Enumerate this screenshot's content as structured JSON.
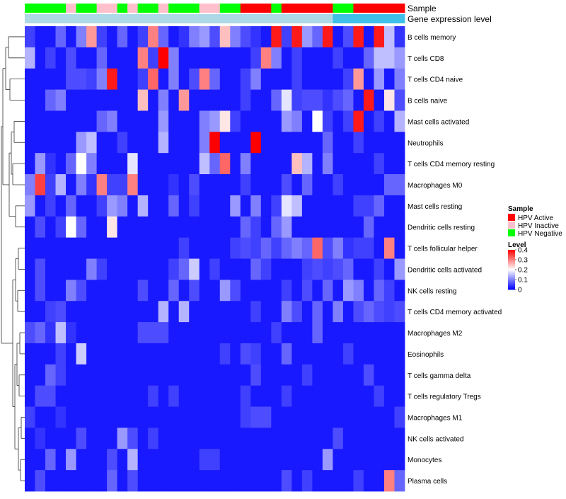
{
  "chart_data": {
    "type": "heatmap",
    "annotation_tracks": [
      {
        "name": "Sample",
        "values": [
          "Negative",
          "Negative",
          "Negative",
          "Negative",
          "Inactive",
          "Negative",
          "Negative",
          "Inactive",
          "Inactive",
          "Negative",
          "Inactive",
          "Negative",
          "Negative",
          "Inactive",
          "Negative",
          "Negative",
          "Negative",
          "Inactive",
          "Inactive",
          "Negative",
          "Negative",
          "Active",
          "Active",
          "Active",
          "Negative",
          "Active",
          "Active",
          "Active",
          "Active",
          "Active",
          "Negative",
          "Negative",
          "Active",
          "Active",
          "Active",
          "Active",
          "Active"
        ]
      },
      {
        "name": "Gene expression level",
        "values": [
          "low",
          "low",
          "low",
          "low",
          "low",
          "low",
          "low",
          "low",
          "low",
          "low",
          "low",
          "low",
          "low",
          "low",
          "low",
          "low",
          "low",
          "low",
          "low",
          "low",
          "low",
          "low",
          "low",
          "low",
          "low",
          "low",
          "low",
          "low",
          "low",
          "low",
          "high",
          "high",
          "high",
          "high",
          "high",
          "high",
          "high"
        ]
      }
    ],
    "rows": [
      "B cells memory",
      "T cells CD8",
      "T cells CD4 naive",
      "B cells naive",
      "Mast cells activated",
      "Neutrophils",
      "T cells CD4 memory resting",
      "Macrophages M0",
      "Mast cells resting",
      "Dendritic cells resting",
      "T cells follicular helper",
      "Dendritic cells activated",
      "NK cells resting",
      "T cells CD4 memory activated",
      "Macrophages M2",
      "Eosinophils",
      "T cells gamma delta",
      "T cells regulatory  Tregs",
      "Macrophages M1",
      "NK cells activated",
      "Monocytes",
      "Plasma cells"
    ],
    "values": [
      [
        0.05,
        0.02,
        0.02,
        0.08,
        0.02,
        0.1,
        0.28,
        0.05,
        0.02,
        0.08,
        0.02,
        0.05,
        0.3,
        0.08,
        0.02,
        0.04,
        0.1,
        0.12,
        0.06,
        0.25,
        0.1,
        0.06,
        0.04,
        0.02,
        0.38,
        0.05,
        0.38,
        0.12,
        0.08,
        0.38,
        0.02,
        0.06,
        0.38,
        0.02,
        0.38,
        0.15,
        0.04
      ],
      [
        0.14,
        0.02,
        0.05,
        0.02,
        0.06,
        0.02,
        0.02,
        0.08,
        0.02,
        0.02,
        0.02,
        0.3,
        0.05,
        0.4,
        0.1,
        0.02,
        0.02,
        0.02,
        0.02,
        0.02,
        0.02,
        0.02,
        0.05,
        0.3,
        0.1,
        0.02,
        0.05,
        0.02,
        0.02,
        0.02,
        0.05,
        0.02,
        0.02,
        0.08,
        0.15,
        0.15,
        0.12
      ],
      [
        0.02,
        0.02,
        0.02,
        0.02,
        0.06,
        0.06,
        0.05,
        0.1,
        0.38,
        0.02,
        0.02,
        0.05,
        0.32,
        0.02,
        0.1,
        0.02,
        0.06,
        0.3,
        0.08,
        0.02,
        0.02,
        0.05,
        0.1,
        0.02,
        0.02,
        0.02,
        0.05,
        0.02,
        0.02,
        0.02,
        0.02,
        0.05,
        0.28,
        0.02,
        0.12,
        0.02,
        0.1
      ],
      [
        0.02,
        0.02,
        0.08,
        0.1,
        0.02,
        0.02,
        0.02,
        0.02,
        0.02,
        0.02,
        0.02,
        0.25,
        0.02,
        0.1,
        0.02,
        0.28,
        0.02,
        0.02,
        0.02,
        0.02,
        0.02,
        0.05,
        0.02,
        0.02,
        0.08,
        0.18,
        0.05,
        0.06,
        0.06,
        0.04,
        0.06,
        0.08,
        0.02,
        0.38,
        0.02,
        0.22,
        0.06
      ],
      [
        0.02,
        0.02,
        0.02,
        0.02,
        0.02,
        0.02,
        0.02,
        0.08,
        0.1,
        0.02,
        0.02,
        0.02,
        0.02,
        0.12,
        0.02,
        0.02,
        0.02,
        0.1,
        0.12,
        0.22,
        0.05,
        0.02,
        0.02,
        0.02,
        0.02,
        0.12,
        0.1,
        0.02,
        0.2,
        0.05,
        0.02,
        0.05,
        0.38,
        0.02,
        0.05,
        0.02,
        0.14
      ],
      [
        0.02,
        0.02,
        0.02,
        0.02,
        0.02,
        0.12,
        0.15,
        0.02,
        0.02,
        0.05,
        0.02,
        0.02,
        0.02,
        0.14,
        0.02,
        0.02,
        0.02,
        0.1,
        0.4,
        0.02,
        0.02,
        0.02,
        0.4,
        0.02,
        0.02,
        0.02,
        0.02,
        0.02,
        0.02,
        0.08,
        0.02,
        0.02,
        0.05,
        0.02,
        0.02,
        0.02,
        0.02
      ],
      [
        0.02,
        0.12,
        0.04,
        0.02,
        0.08,
        0.2,
        0.1,
        0.02,
        0.02,
        0.02,
        0.18,
        0.02,
        0.02,
        0.02,
        0.02,
        0.02,
        0.02,
        0.15,
        0.08,
        0.32,
        0.02,
        0.1,
        0.02,
        0.02,
        0.02,
        0.02,
        0.25,
        0.14,
        0.02,
        0.1,
        0.02,
        0.02,
        0.02,
        0.02,
        0.05,
        0.02,
        0.02
      ],
      [
        0.1,
        0.35,
        0.05,
        0.14,
        0.02,
        0.1,
        0.04,
        0.3,
        0.05,
        0.05,
        0.3,
        0.02,
        0.02,
        0.02,
        0.04,
        0.02,
        0.06,
        0.02,
        0.02,
        0.02,
        0.02,
        0.05,
        0.02,
        0.02,
        0.02,
        0.06,
        0.02,
        0.08,
        0.02,
        0.02,
        0.05,
        0.02,
        0.02,
        0.02,
        0.02,
        0.08,
        0.08
      ],
      [
        0.12,
        0.02,
        0.05,
        0.02,
        0.08,
        0.02,
        0.02,
        0.05,
        0.12,
        0.1,
        0.02,
        0.14,
        0.02,
        0.02,
        0.08,
        0.02,
        0.05,
        0.02,
        0.02,
        0.02,
        0.12,
        0.02,
        0.1,
        0.02,
        0.05,
        0.18,
        0.15,
        0.02,
        0.02,
        0.02,
        0.02,
        0.02,
        0.05,
        0.05,
        0.08,
        0.02,
        0.02
      ],
      [
        0.02,
        0.06,
        0.02,
        0.05,
        0.2,
        0.08,
        0.02,
        0.02,
        0.22,
        0.02,
        0.02,
        0.02,
        0.02,
        0.02,
        0.02,
        0.02,
        0.02,
        0.02,
        0.02,
        0.02,
        0.02,
        0.08,
        0.05,
        0.02,
        0.08,
        0.12,
        0.02,
        0.02,
        0.02,
        0.02,
        0.02,
        0.02,
        0.02,
        0.08,
        0.02,
        0.02,
        0.02
      ],
      [
        0.02,
        0.02,
        0.02,
        0.02,
        0.02,
        0.02,
        0.02,
        0.02,
        0.02,
        0.02,
        0.02,
        0.02,
        0.02,
        0.02,
        0.02,
        0.05,
        0.02,
        0.02,
        0.02,
        0.02,
        0.05,
        0.06,
        0.05,
        0.08,
        0.05,
        0.08,
        0.1,
        0.08,
        0.32,
        0.06,
        0.1,
        0.04,
        0.05,
        0.05,
        0.02,
        0.3,
        0.02
      ],
      [
        0.02,
        0.06,
        0.02,
        0.02,
        0.02,
        0.02,
        0.1,
        0.05,
        0.02,
        0.02,
        0.02,
        0.02,
        0.02,
        0.02,
        0.05,
        0.08,
        0.16,
        0.02,
        0.05,
        0.02,
        0.02,
        0.02,
        0.08,
        0.05,
        0.02,
        0.02,
        0.02,
        0.05,
        0.06,
        0.05,
        0.06,
        0.08,
        0.02,
        0.02,
        0.05,
        0.02,
        0.12
      ],
      [
        0.02,
        0.06,
        0.02,
        0.02,
        0.1,
        0.06,
        0.02,
        0.02,
        0.02,
        0.02,
        0.02,
        0.06,
        0.02,
        0.02,
        0.08,
        0.02,
        0.06,
        0.02,
        0.02,
        0.12,
        0.06,
        0.02,
        0.02,
        0.02,
        0.02,
        0.05,
        0.02,
        0.06,
        0.02,
        0.08,
        0.02,
        0.12,
        0.1,
        0.02,
        0.08,
        0.05,
        0.02
      ],
      [
        0.02,
        0.02,
        0.05,
        0.06,
        0.02,
        0.02,
        0.02,
        0.02,
        0.02,
        0.02,
        0.02,
        0.02,
        0.02,
        0.14,
        0.02,
        0.14,
        0.02,
        0.02,
        0.02,
        0.02,
        0.02,
        0.02,
        0.05,
        0.02,
        0.02,
        0.1,
        0.06,
        0.02,
        0.08,
        0.02,
        0.1,
        0.02,
        0.06,
        0.08,
        0.06,
        0.05,
        0.06
      ],
      [
        0.06,
        0.08,
        0.04,
        0.15,
        0.04,
        0.02,
        0.02,
        0.02,
        0.02,
        0.02,
        0.02,
        0.06,
        0.06,
        0.06,
        0.02,
        0.02,
        0.02,
        0.02,
        0.02,
        0.02,
        0.02,
        0.02,
        0.02,
        0.02,
        0.05,
        0.02,
        0.02,
        0.02,
        0.08,
        0.02,
        0.02,
        0.02,
        0.02,
        0.02,
        0.02,
        0.02,
        0.02
      ],
      [
        0.02,
        0.02,
        0.02,
        0.05,
        0.02,
        0.16,
        0.02,
        0.02,
        0.02,
        0.02,
        0.02,
        0.02,
        0.02,
        0.02,
        0.02,
        0.02,
        0.02,
        0.02,
        0.02,
        0.05,
        0.02,
        0.06,
        0.05,
        0.02,
        0.02,
        0.08,
        0.02,
        0.02,
        0.02,
        0.02,
        0.02,
        0.05,
        0.02,
        0.02,
        0.02,
        0.02,
        0.02
      ],
      [
        0.02,
        0.02,
        0.08,
        0.05,
        0.02,
        0.02,
        0.02,
        0.02,
        0.02,
        0.02,
        0.02,
        0.02,
        0.02,
        0.02,
        0.02,
        0.02,
        0.02,
        0.02,
        0.02,
        0.02,
        0.02,
        0.02,
        0.06,
        0.02,
        0.02,
        0.02,
        0.02,
        0.05,
        0.02,
        0.02,
        0.02,
        0.02,
        0.02,
        0.06,
        0.02,
        0.02,
        0.02
      ],
      [
        0.02,
        0.06,
        0.06,
        0.02,
        0.02,
        0.02,
        0.02,
        0.02,
        0.02,
        0.02,
        0.02,
        0.02,
        0.05,
        0.02,
        0.05,
        0.02,
        0.02,
        0.02,
        0.02,
        0.02,
        0.02,
        0.05,
        0.02,
        0.02,
        0.02,
        0.05,
        0.02,
        0.02,
        0.02,
        0.02,
        0.02,
        0.02,
        0.02,
        0.02,
        0.05,
        0.02,
        0.02
      ],
      [
        0.05,
        0.02,
        0.02,
        0.04,
        0.02,
        0.02,
        0.02,
        0.02,
        0.02,
        0.02,
        0.02,
        0.02,
        0.02,
        0.02,
        0.02,
        0.02,
        0.02,
        0.02,
        0.02,
        0.02,
        0.02,
        0.05,
        0.06,
        0.06,
        0.02,
        0.02,
        0.02,
        0.02,
        0.02,
        0.02,
        0.02,
        0.02,
        0.02,
        0.02,
        0.02,
        0.02,
        0.05
      ],
      [
        0.02,
        0.04,
        0.02,
        0.02,
        0.02,
        0.06,
        0.02,
        0.02,
        0.02,
        0.12,
        0.06,
        0.02,
        0.05,
        0.02,
        0.02,
        0.02,
        0.02,
        0.02,
        0.02,
        0.02,
        0.02,
        0.02,
        0.02,
        0.02,
        0.02,
        0.02,
        0.02,
        0.02,
        0.02,
        0.02,
        0.06,
        0.02,
        0.02,
        0.02,
        0.02,
        0.02,
        0.02
      ],
      [
        0.02,
        0.02,
        0.08,
        0.02,
        0.12,
        0.02,
        0.02,
        0.02,
        0.06,
        0.02,
        0.14,
        0.02,
        0.02,
        0.02,
        0.02,
        0.02,
        0.02,
        0.05,
        0.05,
        0.02,
        0.02,
        0.02,
        0.02,
        0.02,
        0.02,
        0.02,
        0.02,
        0.02,
        0.02,
        0.12,
        0.02,
        0.02,
        0.02,
        0.02,
        0.02,
        0.02,
        0.02
      ],
      [
        0.02,
        0.06,
        0.02,
        0.02,
        0.02,
        0.02,
        0.02,
        0.02,
        0.08,
        0.02,
        0.06,
        0.02,
        0.02,
        0.02,
        0.02,
        0.02,
        0.02,
        0.02,
        0.02,
        0.02,
        0.02,
        0.02,
        0.02,
        0.02,
        0.02,
        0.06,
        0.02,
        0.05,
        0.02,
        0.02,
        0.02,
        0.02,
        0.05,
        0.02,
        0.02,
        0.3,
        0.08
      ]
    ],
    "legend": {
      "sample_title": "Sample",
      "sample_entries": [
        {
          "key": "Active",
          "label": "HPV Active",
          "color": "#ff0000"
        },
        {
          "key": "Inactive",
          "label": "HPV Inactive",
          "color": "#ffc0cb"
        },
        {
          "key": "Negative",
          "label": "HPV Negative",
          "color": "#00ff00"
        }
      ],
      "level_title": "Level",
      "level_ticks": [
        "0",
        "0.1",
        "0.2",
        "0.3",
        "0.4"
      ],
      "level_range": [
        0,
        0.4
      ],
      "gradient": [
        "#0000ff",
        "#ffffff",
        "#ff0000"
      ]
    },
    "expression_colors": {
      "low": "#add8e6",
      "high": "#3fc0e8"
    },
    "legend_placement": "right",
    "dendrogram": "left"
  }
}
